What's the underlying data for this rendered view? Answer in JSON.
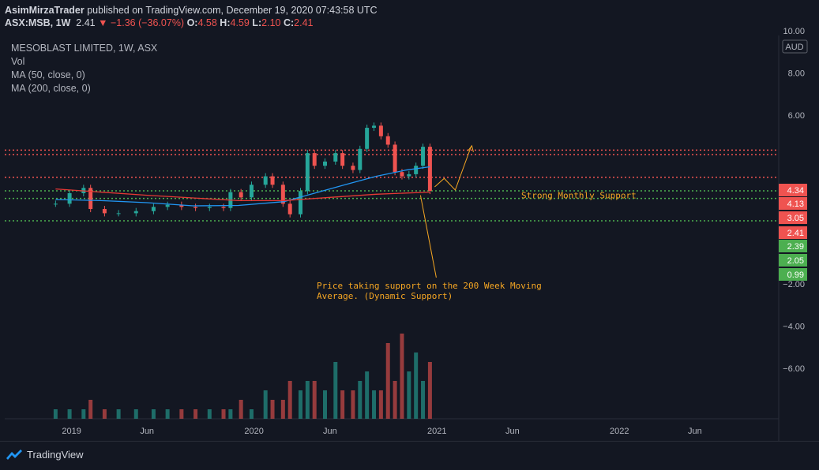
{
  "header": {
    "line1_user": "AsimMirzaTrader",
    "line1_rest": " published on TradingView.com, December 19, 2020 07:43:58 UTC",
    "symbol": "ASX:MSB, 1W",
    "last": "2.41",
    "change": "▼ −1.36 (−36.07%)",
    "o_label": "O:",
    "o_val": "4.58",
    "h_label": "H:",
    "h_val": "4.59",
    "l_label": "L:",
    "l_val": "2.10",
    "c_label": "C:",
    "c_val": "2.41"
  },
  "legend": {
    "title": "MESOBLAST LIMITED, 1W, ASX",
    "vol": "Vol",
    "ma50": "MA (50, close, 0)",
    "ma200": "MA (200, close, 0)"
  },
  "footer": {
    "brand": "TradingView"
  },
  "colors": {
    "background": "#131722",
    "up": "#26a69a",
    "down": "#ef5350",
    "ma50": "#2196f3",
    "ma200": "#e53935",
    "annotation": "#f5a623",
    "support_green": "#4caf50",
    "resistance_red": "#ef5350"
  },
  "chart_data": {
    "type": "candlestick",
    "currency": "AUD",
    "y_ticks": [
      "10.00",
      "8.00",
      "6.00",
      "−2.00",
      "−4.00",
      "−6.00"
    ],
    "ylim": [
      -6.5,
      11
    ],
    "x_ticks": [
      "2019",
      "Jun",
      "2020",
      "Jun",
      "2021",
      "Jun",
      "2022",
      "Jun"
    ],
    "price_labels": [
      {
        "value": "4.34",
        "color": "#ef5350"
      },
      {
        "value": "4.13",
        "color": "#ef5350"
      },
      {
        "value": "3.05",
        "color": "#ef5350"
      },
      {
        "value": "2.41",
        "color": "#ef5350"
      },
      {
        "value": "2.39",
        "color": "#4caf50"
      },
      {
        "value": "2.05",
        "color": "#4caf50"
      },
      {
        "value": "0.99",
        "color": "#4caf50"
      }
    ],
    "horizontal_levels": [
      {
        "value": 4.34,
        "color": "red"
      },
      {
        "value": 4.13,
        "color": "red"
      },
      {
        "value": 3.05,
        "color": "red"
      },
      {
        "value": 2.41,
        "color": "green"
      },
      {
        "value": 2.05,
        "color": "green"
      },
      {
        "value": 0.99,
        "color": "green"
      }
    ],
    "annotations": {
      "support_label": "Strong Monthly Support",
      "note": [
        "Price taking support on the 200 Week Moving",
        "Average. (Dynamic Support)"
      ]
    },
    "series": [
      {
        "name": "close",
        "points": [
          [
            "2018-11-30",
            1.8
          ],
          [
            "2018-12-28",
            2.3
          ],
          [
            "2019-01-25",
            2.55
          ],
          [
            "2019-02-08",
            1.55
          ],
          [
            "2019-03-08",
            1.35
          ],
          [
            "2019-04-05",
            1.35
          ],
          [
            "2019-05-10",
            1.45
          ],
          [
            "2019-06-14",
            1.65
          ],
          [
            "2019-07-12",
            1.75
          ],
          [
            "2019-08-09",
            1.65
          ],
          [
            "2019-09-06",
            1.6
          ],
          [
            "2019-10-04",
            1.65
          ],
          [
            "2019-11-01",
            1.6
          ],
          [
            "2019-11-15",
            2.35
          ],
          [
            "2019-12-06",
            2.1
          ],
          [
            "2019-12-27",
            2.7
          ],
          [
            "2020-01-24",
            3.1
          ],
          [
            "2020-02-07",
            2.7
          ],
          [
            "2020-02-28",
            1.8
          ],
          [
            "2020-03-13",
            1.3
          ],
          [
            "2020-04-03",
            2.4
          ],
          [
            "2020-04-17",
            4.2
          ],
          [
            "2020-05-01",
            3.6
          ],
          [
            "2020-05-22",
            3.8
          ],
          [
            "2020-06-12",
            4.2
          ],
          [
            "2020-06-26",
            3.6
          ],
          [
            "2020-07-17",
            3.4
          ],
          [
            "2020-07-31",
            4.4
          ],
          [
            "2020-08-14",
            5.4
          ],
          [
            "2020-08-28",
            5.5
          ],
          [
            "2020-09-11",
            5.0
          ],
          [
            "2020-09-25",
            4.6
          ],
          [
            "2020-10-09",
            3.3
          ],
          [
            "2020-10-23",
            3.1
          ],
          [
            "2020-11-06",
            3.2
          ],
          [
            "2020-11-20",
            3.6
          ],
          [
            "2020-12-04",
            4.5
          ],
          [
            "2020-12-18",
            2.41
          ]
        ]
      },
      {
        "name": "MA (50, close, 0)",
        "points": [
          [
            "2018-11-30",
            2.0
          ],
          [
            "2019-03-01",
            1.95
          ],
          [
            "2019-06-01",
            1.85
          ],
          [
            "2019-09-01",
            1.7
          ],
          [
            "2019-12-01",
            1.72
          ],
          [
            "2020-03-01",
            1.9
          ],
          [
            "2020-05-01",
            2.3
          ],
          [
            "2020-07-01",
            2.7
          ],
          [
            "2020-09-01",
            3.1
          ],
          [
            "2020-11-01",
            3.4
          ],
          [
            "2020-12-18",
            3.55
          ]
        ]
      },
      {
        "name": "MA (200, close, 0)",
        "points": [
          [
            "2018-11-30",
            2.5
          ],
          [
            "2019-06-01",
            2.2
          ],
          [
            "2019-12-01",
            1.95
          ],
          [
            "2020-03-01",
            1.95
          ],
          [
            "2020-06-01",
            2.1
          ],
          [
            "2020-09-01",
            2.25
          ],
          [
            "2020-12-18",
            2.35
          ]
        ]
      }
    ],
    "volume_ranks": [
      1,
      1,
      1,
      2,
      1,
      1,
      1,
      1,
      1,
      1,
      1,
      1,
      1,
      1,
      2,
      1,
      3,
      2,
      2,
      4,
      3,
      4,
      4,
      3,
      6,
      3,
      3,
      4,
      5,
      3,
      3,
      8,
      4,
      9,
      5,
      7,
      4,
      6
    ]
  }
}
